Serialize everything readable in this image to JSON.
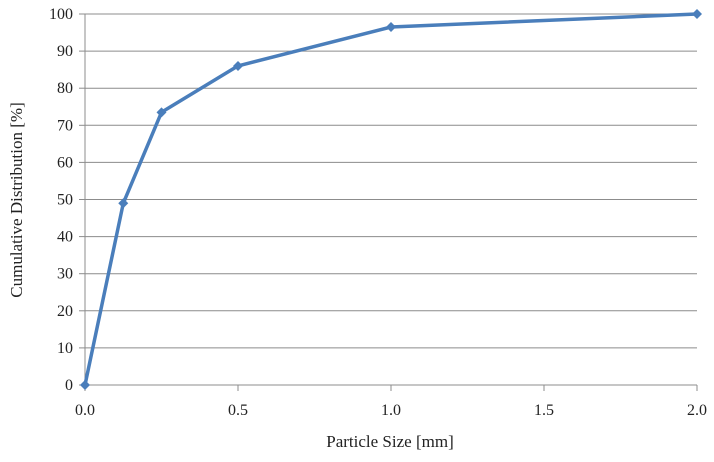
{
  "chart_data": {
    "type": "line",
    "title": "",
    "xlabel": "Particle Size [mm]",
    "ylabel": "Cumulative Distribution [%]",
    "xlim": [
      0.0,
      2.0
    ],
    "ylim": [
      0,
      100
    ],
    "x_ticks": [
      "0.0",
      "0.5",
      "1.0",
      "1.5",
      "2.0"
    ],
    "y_ticks": [
      "0",
      "10",
      "20",
      "30",
      "40",
      "50",
      "60",
      "70",
      "80",
      "90",
      "100"
    ],
    "grid": "horizontal",
    "legend": "none",
    "series": [
      {
        "color": "#4a7ebb",
        "marker": "diamond",
        "x": [
          0.0,
          0.125,
          0.25,
          0.5,
          1.0,
          2.0
        ],
        "y": [
          0,
          49,
          73.5,
          86,
          96.5,
          100
        ]
      }
    ]
  }
}
